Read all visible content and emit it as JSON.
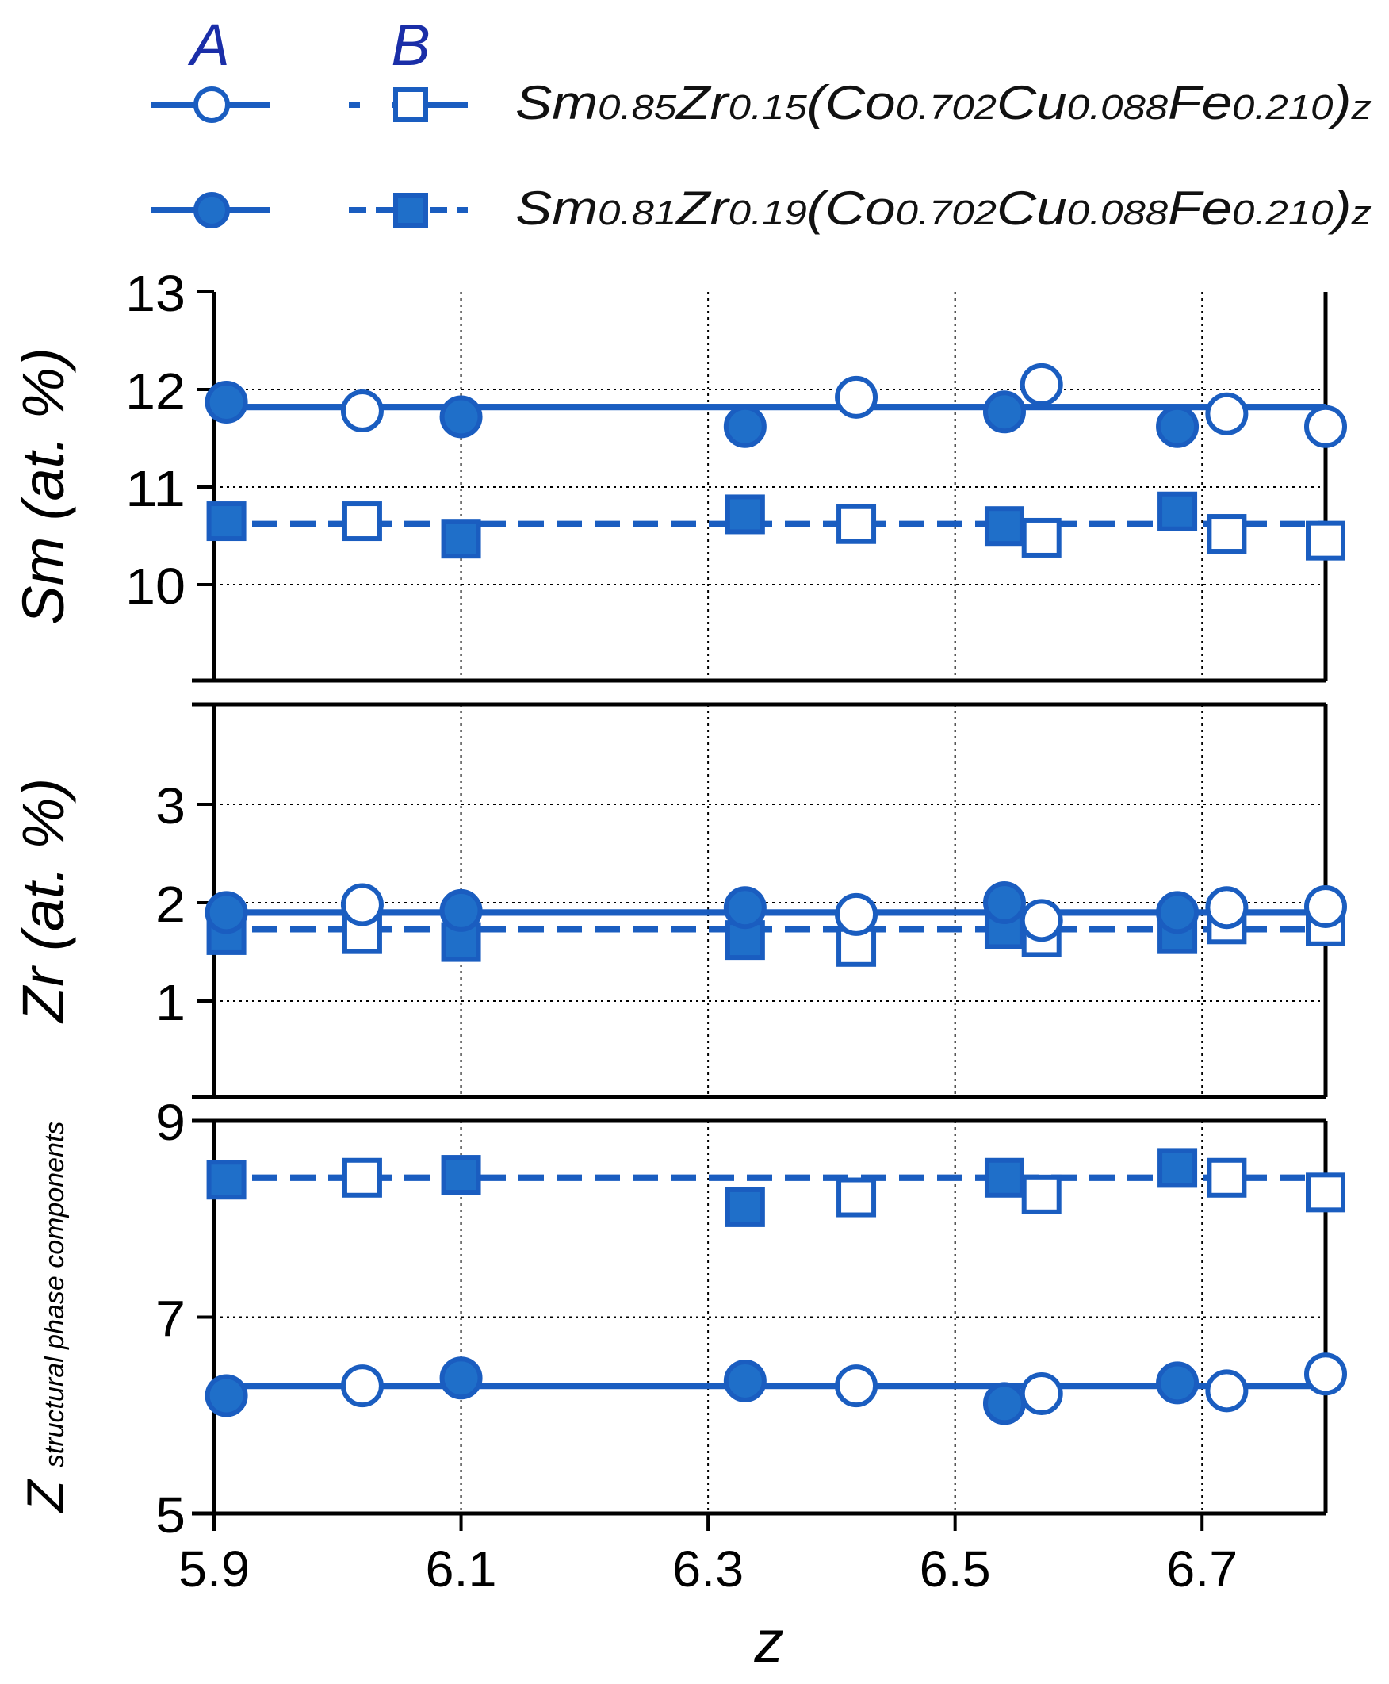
{
  "colors": {
    "series": "#1a5dc0",
    "fill": "#1f6fc9",
    "frame": "#000000",
    "grid": "#000000",
    "header": "#1a2ea8"
  },
  "legend": {
    "header_a": "A",
    "header_b": "B",
    "entries": [
      {
        "parts": [
          [
            "Sm",
            "n"
          ],
          [
            "0.85",
            "s"
          ],
          [
            "Zr",
            "n"
          ],
          [
            "0.15",
            "s"
          ],
          [
            "(Co",
            "n"
          ],
          [
            "0.702",
            "s"
          ],
          [
            "Cu",
            "n"
          ],
          [
            "0.088",
            "s"
          ],
          [
            "Fe",
            "n"
          ],
          [
            "0.210",
            "s"
          ],
          [
            ")",
            "n"
          ],
          [
            "z",
            "s"
          ]
        ],
        "marker": "open"
      },
      {
        "parts": [
          [
            "Sm",
            "n"
          ],
          [
            "0.81",
            "s"
          ],
          [
            "Zr",
            "n"
          ],
          [
            "0.19",
            "s"
          ],
          [
            "(Co",
            "n"
          ],
          [
            "0.702",
            "s"
          ],
          [
            "Cu",
            "n"
          ],
          [
            "0.088",
            "s"
          ],
          [
            "Fe",
            "n"
          ],
          [
            "0.210",
            "s"
          ],
          [
            ")",
            "n"
          ],
          [
            "z",
            "s"
          ]
        ],
        "marker": "filled"
      }
    ]
  },
  "chart_data": [
    {
      "type": "line",
      "ylabel": "Sm (at. %)",
      "ylim": [
        9.1,
        13
      ],
      "yticks": [
        "13",
        "12",
        "11",
        "10"
      ],
      "ytick_values": [
        13,
        12,
        11,
        10
      ],
      "xlim": [
        5.9,
        6.8
      ],
      "xticks": [
        5.9,
        6.1,
        6.3,
        6.5,
        6.7
      ],
      "grid": true,
      "series": [
        {
          "key": "A_open",
          "line": "solid",
          "marker": "circle",
          "filled": false,
          "line_level": 11.82,
          "x": [
            6.02,
            6.42,
            6.57,
            6.72,
            6.8
          ],
          "y": [
            11.78,
            11.92,
            12.05,
            11.75,
            11.62
          ]
        },
        {
          "key": "A_filled",
          "line": "solid",
          "marker": "circle",
          "filled": true,
          "line_level": 11.82,
          "x": [
            5.91,
            6.1,
            6.33,
            6.54,
            6.68
          ],
          "y": [
            11.87,
            11.72,
            11.62,
            11.77,
            11.62
          ]
        },
        {
          "key": "B_open",
          "line": "dashed",
          "marker": "square",
          "filled": false,
          "line_level": 10.62,
          "x": [
            6.02,
            6.42,
            6.57,
            6.72,
            6.8
          ],
          "y": [
            10.65,
            10.62,
            10.48,
            10.52,
            10.45
          ]
        },
        {
          "key": "B_filled",
          "line": "dashed",
          "marker": "square",
          "filled": true,
          "line_level": 10.62,
          "x": [
            5.91,
            6.1,
            6.33,
            6.54,
            6.68
          ],
          "y": [
            10.65,
            10.47,
            10.72,
            10.6,
            10.75
          ]
        }
      ]
    },
    {
      "type": "line",
      "ylabel": "Zr (at. %)",
      "ylim": [
        0,
        4
      ],
      "yticks": [
        "3",
        "2",
        "1"
      ],
      "ytick_values": [
        3,
        2,
        1
      ],
      "xlim": [
        5.9,
        6.8
      ],
      "xticks": [
        5.9,
        6.1,
        6.3,
        6.5,
        6.7
      ],
      "grid": true,
      "series": [
        {
          "key": "A_open",
          "line": "solid",
          "marker": "circle",
          "filled": false,
          "line_level": 1.9,
          "x": [
            6.02,
            6.42,
            6.57,
            6.72,
            6.8
          ],
          "y": [
            1.98,
            1.88,
            1.82,
            1.95,
            1.96
          ]
        },
        {
          "key": "A_filled",
          "line": "solid",
          "marker": "circle",
          "filled": true,
          "line_level": 1.9,
          "x": [
            5.91,
            6.1,
            6.33,
            6.54,
            6.68
          ],
          "y": [
            1.9,
            1.92,
            1.95,
            2.0,
            1.9
          ]
        },
        {
          "key": "B_open",
          "line": "dashed",
          "marker": "square",
          "filled": false,
          "line_level": 1.73,
          "x": [
            6.02,
            6.42,
            6.57,
            6.72,
            6.8
          ],
          "y": [
            1.68,
            1.55,
            1.65,
            1.78,
            1.76
          ]
        },
        {
          "key": "B_filled",
          "line": "dashed",
          "marker": "square",
          "filled": true,
          "line_level": 1.73,
          "x": [
            5.91,
            6.1,
            6.33,
            6.54,
            6.68
          ],
          "y": [
            1.67,
            1.6,
            1.62,
            1.73,
            1.68
          ]
        }
      ]
    },
    {
      "type": "line",
      "ylabel": "Z",
      "ylabel_sub": "structural phase components",
      "ylim": [
        5,
        9
      ],
      "yticks": [
        "9",
        "7",
        "5"
      ],
      "ytick_values": [
        9,
        7,
        5
      ],
      "xlim": [
        5.9,
        6.8
      ],
      "xticks": [
        5.9,
        6.1,
        6.3,
        6.5,
        6.7
      ],
      "xlabel": "z",
      "grid": true,
      "series": [
        {
          "key": "A_open",
          "line": "solid",
          "marker": "circle",
          "filled": false,
          "line_level": 6.3,
          "x": [
            6.02,
            6.42,
            6.57,
            6.72,
            6.8
          ],
          "y": [
            6.3,
            6.3,
            6.22,
            6.25,
            6.42
          ]
        },
        {
          "key": "A_filled",
          "line": "solid",
          "marker": "circle",
          "filled": true,
          "line_level": 6.3,
          "x": [
            5.91,
            6.1,
            6.33,
            6.54,
            6.68
          ],
          "y": [
            6.2,
            6.38,
            6.35,
            6.12,
            6.33
          ]
        },
        {
          "key": "B_open",
          "line": "dashed",
          "marker": "square",
          "filled": false,
          "line_level": 8.42,
          "x": [
            6.02,
            6.42,
            6.57,
            6.72,
            6.8
          ],
          "y": [
            8.42,
            8.22,
            8.25,
            8.42,
            8.27
          ]
        },
        {
          "key": "B_filled",
          "line": "dashed",
          "marker": "square",
          "filled": true,
          "line_level": 8.42,
          "x": [
            5.91,
            6.1,
            6.33,
            6.54,
            6.68
          ],
          "y": [
            8.4,
            8.45,
            8.12,
            8.42,
            8.52
          ]
        }
      ]
    }
  ]
}
